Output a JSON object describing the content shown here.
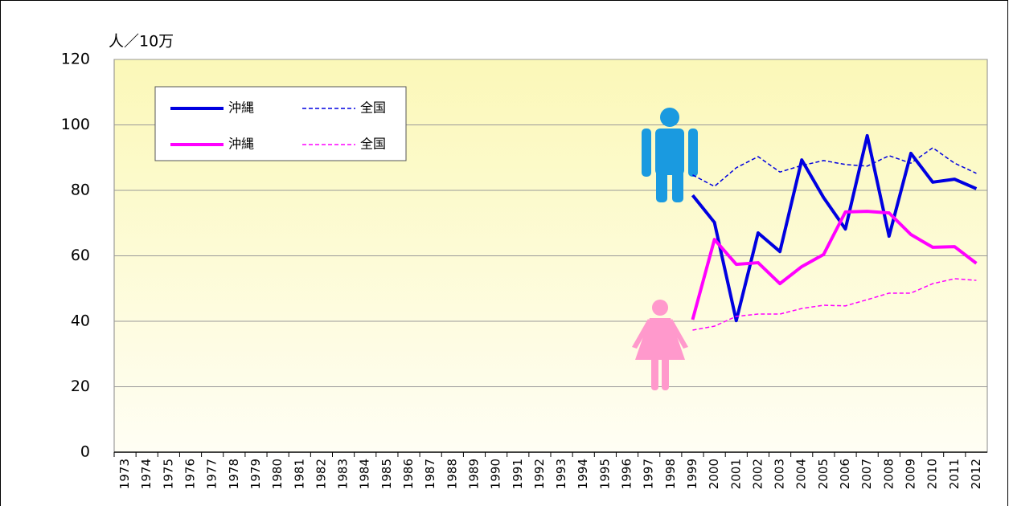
{
  "chart_data": {
    "type": "line",
    "y_label": "人／10万",
    "categories": [
      "1973",
      "1974",
      "1975",
      "1976",
      "1977",
      "1978",
      "1979",
      "1980",
      "1981",
      "1982",
      "1983",
      "1984",
      "1985",
      "1986",
      "1987",
      "1988",
      "1989",
      "1990",
      "1991",
      "1992",
      "1993",
      "1994",
      "1995",
      "1996",
      "1997",
      "1998",
      "1999",
      "2000",
      "2001",
      "2002",
      "2003",
      "2004",
      "2005",
      "2006",
      "2007",
      "2008",
      "2009",
      "2010",
      "2011",
      "2012"
    ],
    "series": [
      {
        "name": "沖縄",
        "color": "#0000e0",
        "dashed": false,
        "values": [
          null,
          null,
          null,
          null,
          null,
          null,
          null,
          null,
          null,
          null,
          null,
          null,
          null,
          null,
          null,
          null,
          null,
          null,
          null,
          null,
          null,
          null,
          null,
          null,
          null,
          null,
          78.5,
          70.2,
          40.2,
          67,
          61.3,
          89.3,
          77.8,
          68.2,
          96.7,
          66,
          91.3,
          82.5,
          83.4,
          80.5
        ]
      },
      {
        "name": "全国",
        "color": "#0000e0",
        "dashed": true,
        "values": [
          null,
          null,
          null,
          null,
          null,
          null,
          null,
          null,
          null,
          null,
          null,
          null,
          null,
          null,
          null,
          null,
          null,
          null,
          null,
          null,
          null,
          null,
          null,
          null,
          null,
          null,
          84.7,
          81.2,
          86.9,
          90.3,
          85.6,
          87.6,
          89.1,
          87.9,
          87.4,
          90.6,
          88.3,
          93,
          88.3,
          85.2
        ]
      },
      {
        "name": "沖縄",
        "color": "#ff00ff",
        "dashed": false,
        "values": [
          null,
          null,
          null,
          null,
          null,
          null,
          null,
          null,
          null,
          null,
          null,
          null,
          null,
          null,
          null,
          null,
          null,
          null,
          null,
          null,
          null,
          null,
          null,
          null,
          null,
          null,
          40.5,
          65,
          57.4,
          57.9,
          51.5,
          56.7,
          60.4,
          73.4,
          73.6,
          73.1,
          66.5,
          62.6,
          62.8,
          57.7
        ]
      },
      {
        "name": "全国",
        "color": "#ff00ff",
        "dashed": true,
        "values": [
          null,
          null,
          null,
          null,
          null,
          null,
          null,
          null,
          null,
          null,
          null,
          null,
          null,
          null,
          null,
          null,
          null,
          null,
          null,
          null,
          null,
          null,
          null,
          null,
          null,
          null,
          37.3,
          38.5,
          41.5,
          42.2,
          42.2,
          43.9,
          44.9,
          44.7,
          46.6,
          48.6,
          48.6,
          51.5,
          53,
          52.5
        ]
      }
    ],
    "ylim": [
      0,
      120
    ],
    "yticks": [
      0,
      20,
      40,
      60,
      80,
      100,
      120
    ],
    "grid": true
  }
}
